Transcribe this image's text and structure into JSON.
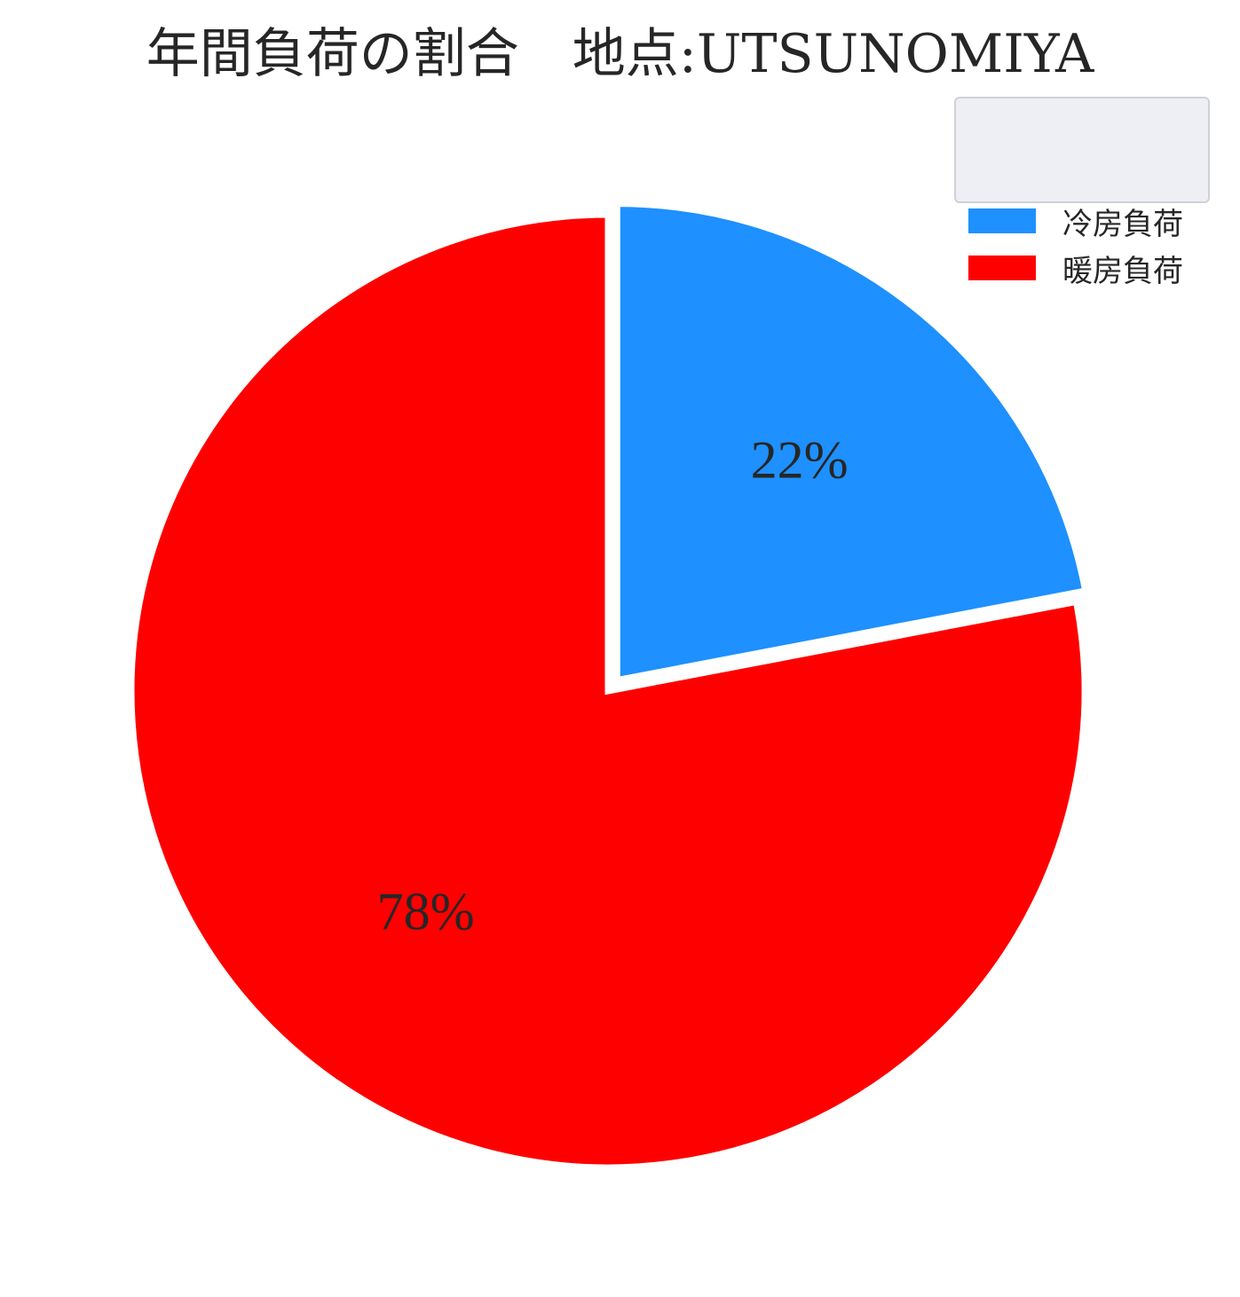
{
  "chart_data": {
    "type": "pie",
    "title": "年間負荷の割合　地点:UTSUNOMIYA",
    "categories": [
      "冷房負荷",
      "暖房負荷"
    ],
    "values": [
      22,
      78
    ],
    "value_labels": [
      "22%",
      "78%"
    ],
    "colors": [
      "#1e90ff",
      "#ff0000"
    ],
    "explode": [
      true,
      false
    ],
    "start_angle_deg": 90,
    "direction": "clockwise",
    "legend": {
      "placement": "top-right",
      "entries": [
        "冷房負荷",
        "暖房負荷"
      ]
    }
  }
}
